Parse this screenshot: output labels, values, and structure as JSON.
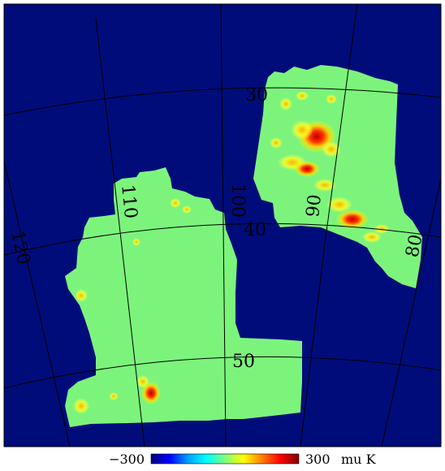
{
  "map": {
    "background_color": "#000c7a",
    "patch_color": "#7cf47c",
    "grid_color": "#000000",
    "latitude_labels": [
      "30",
      "40",
      "50"
    ],
    "longitude_labels": [
      "120",
      "110",
      "100",
      "90",
      "80"
    ]
  },
  "colorbar": {
    "min_label": "−300",
    "max_label": "300",
    "unit_label": "mu K",
    "colors": [
      "#00007f",
      "#0000ff",
      "#00a0ff",
      "#00ffff",
      "#7fff7f",
      "#ffff00",
      "#ff8000",
      "#ff0000",
      "#7f0000"
    ]
  }
}
